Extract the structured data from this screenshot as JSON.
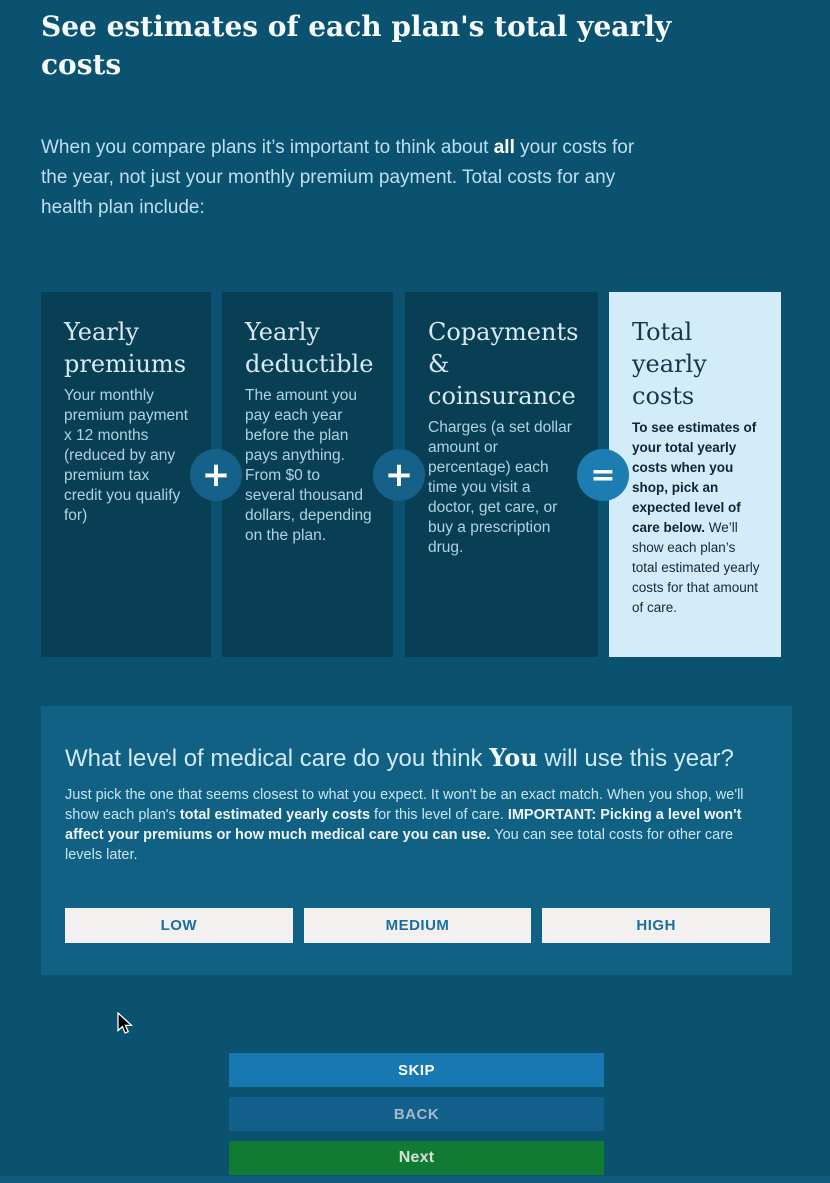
{
  "page": {
    "title": "See estimates of each plan's total yearly costs",
    "intro": [
      {
        "text": "When you compare plans it’s important to think about "
      },
      {
        "text": "all",
        "bold": true
      },
      {
        "text": " your costs for the year, not just your monthly premium payment. Total costs for any health plan include:"
      }
    ]
  },
  "cards": [
    {
      "title": "Yearly premiums",
      "body": [
        {
          "text": "Your monthly premium payment x 12 months (reduced by any premium tax credit you qualify for)"
        }
      ]
    },
    {
      "title": "Yearly deductible",
      "body": [
        {
          "text": "The amount you pay each year before the plan pays anything. From $0 to several thousand dollars, depending on the plan."
        }
      ]
    },
    {
      "title": "Copayments & coinsurance",
      "body": [
        {
          "text": "Charges (a set dollar amount or percentage) each time you visit a doctor, get care, or buy a prescription drug."
        }
      ]
    },
    {
      "title": "Total yearly costs",
      "body": [
        {
          "text": "To see estimates of your total yearly costs when you shop, pick an expected level of care below.",
          "bold": true
        },
        {
          "text": " We’ll show each plan’s total estimated yearly costs for that amount of care."
        }
      ]
    }
  ],
  "operators": {
    "plus": "+",
    "equals": "="
  },
  "care_panel": {
    "heading": [
      {
        "text": "What level of medical care do you think "
      },
      {
        "text": "You",
        "bold": true,
        "serif": true
      },
      {
        "text": " will use this year?"
      }
    ],
    "description": [
      {
        "text": "Just pick the one that seems closest to what you expect. It won't be an exact match. When you shop, we'll show each plan's "
      },
      {
        "text": "total estimated yearly costs",
        "bold": true
      },
      {
        "text": " for this level of care. "
      },
      {
        "text": "IMPORTANT: Picking a level won't affect your premiums or how much medical care you can use.",
        "bold": true
      },
      {
        "text": " You can see total costs for other care levels later."
      }
    ],
    "levels": [
      {
        "label": "LOW"
      },
      {
        "label": "MEDIUM"
      },
      {
        "label": "HIGH"
      }
    ]
  },
  "footer": {
    "skip_label": "SKIP",
    "back_label": "BACK",
    "next_label": "Next"
  },
  "colors": {
    "page_background": "#0a5270",
    "card_background": "#093f55",
    "highlight_card_background": "#d2ecf9",
    "panel_background": "#116184",
    "operator_circle": "#15618a",
    "equals_circle": "#1d7db3",
    "level_button_background": "#f2f1ef",
    "level_button_text": "#1b6fa0",
    "skip_button": "#1878b1",
    "back_button": "#13608c",
    "next_button": "#127b33"
  }
}
